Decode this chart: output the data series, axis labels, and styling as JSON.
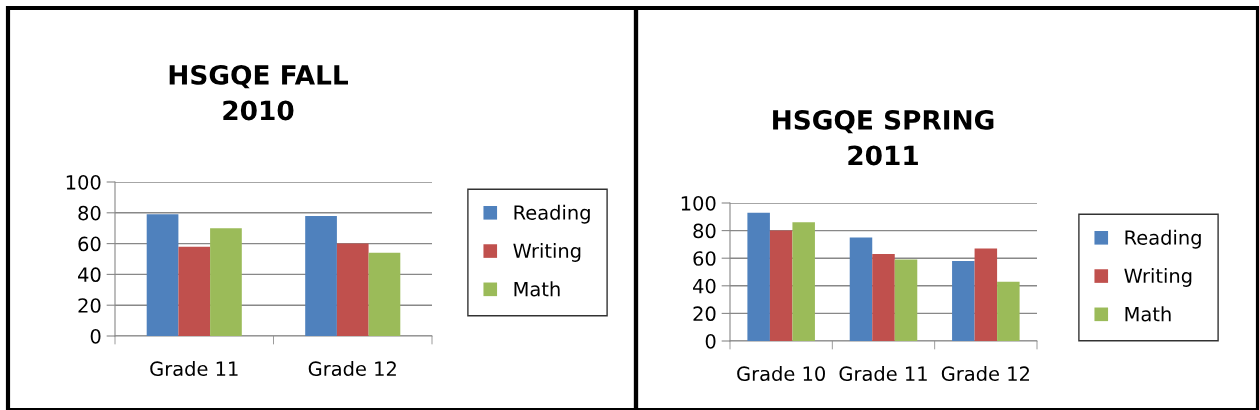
{
  "chart_data": [
    {
      "type": "bar",
      "title": "HSGQE FALL\n2010",
      "categories": [
        "Grade 11",
        "Grade 12"
      ],
      "series": [
        {
          "name": "Reading",
          "color": "#4f81bd",
          "values": [
            79,
            78
          ]
        },
        {
          "name": "Writing",
          "color": "#c0504d",
          "values": [
            58,
            60
          ]
        },
        {
          "name": "Math",
          "color": "#9bbb59",
          "values": [
            70,
            54
          ]
        }
      ],
      "ylim": [
        0,
        100
      ],
      "yticks": [
        0,
        20,
        40,
        60,
        80,
        100
      ],
      "grid": "y",
      "legend": "right"
    },
    {
      "type": "bar",
      "title": "HSGQE SPRING\n2011",
      "categories": [
        "Grade 10",
        "Grade 11",
        "Grade 12"
      ],
      "series": [
        {
          "name": "Reading",
          "color": "#4f81bd",
          "values": [
            93,
            75,
            58
          ]
        },
        {
          "name": "Writing",
          "color": "#c0504d",
          "values": [
            80,
            63,
            67
          ]
        },
        {
          "name": "Math",
          "color": "#9bbb59",
          "values": [
            86,
            59,
            43
          ]
        }
      ],
      "ylim": [
        0,
        100
      ],
      "yticks": [
        0,
        20,
        40,
        60,
        80,
        100
      ],
      "grid": "y",
      "legend": "right"
    }
  ]
}
